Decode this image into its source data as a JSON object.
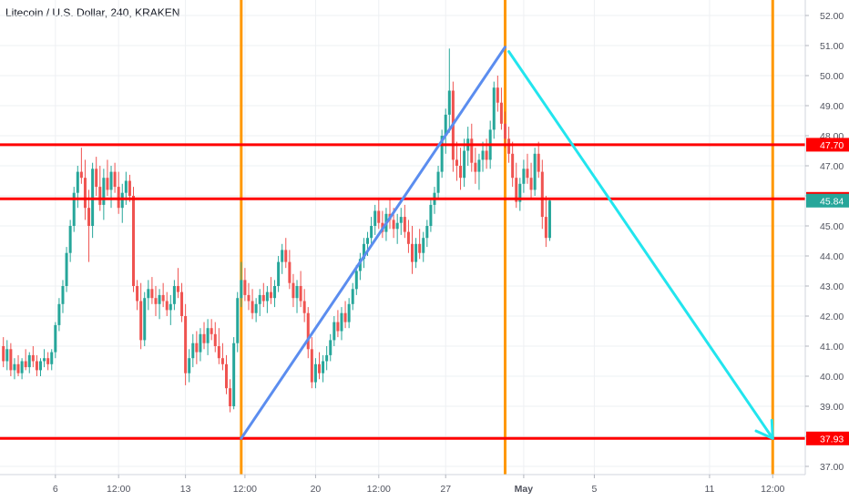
{
  "header": {
    "title": "Litecoin / U.S. Dollar, 240, KRAKEN"
  },
  "colors": {
    "up": "#26a69a",
    "down": "#ef5350",
    "support_resistance": "#ff0000",
    "vertical_markers": "#ff9800",
    "up_trend_line": "#5b8def",
    "down_trend_line": "#22e5ee",
    "current_price_badge": "#26a69a",
    "grid": "#eef0f3"
  },
  "chart_data": {
    "type": "candlestick",
    "symbol": "Litecoin / U.S. Dollar",
    "interval": "240",
    "exchange": "KRAKEN",
    "ylim": [
      36.6,
      52.3
    ],
    "y_ticks": [
      "37.00",
      "38.00",
      "39.00",
      "40.00",
      "41.00",
      "42.00",
      "43.00",
      "44.00",
      "45.00",
      "46.00",
      "47.00",
      "48.00",
      "49.00",
      "50.00",
      "51.00",
      "52.00"
    ],
    "x_ticks": [
      {
        "label": "6",
        "bar": 14
      },
      {
        "label": "12:00",
        "bar": 31
      },
      {
        "label": "13",
        "bar": 49
      },
      {
        "label": "12:00",
        "bar": 65
      },
      {
        "label": "20",
        "bar": 84
      },
      {
        "label": "12:00",
        "bar": 101
      },
      {
        "label": "27",
        "bar": 119
      },
      {
        "label": "May",
        "bar": 140
      },
      {
        "label": "5",
        "bar": 159
      },
      {
        "label": "11",
        "bar": 190
      },
      {
        "label": "12:00",
        "bar": 207
      }
    ],
    "horizontal_levels": [
      {
        "value": 47.7,
        "label": "47.70"
      },
      {
        "value": 45.9,
        "label": "45.90"
      },
      {
        "value": 37.93,
        "label": "37.93"
      }
    ],
    "current_price": {
      "value": 45.84,
      "label": "45.84"
    },
    "vertical_markers_bar": [
      64,
      135,
      207
    ],
    "trend_lines": [
      {
        "name": "up",
        "from": {
          "bar": 64,
          "price": 37.93
        },
        "to": {
          "bar": 135,
          "price": 50.95
        }
      },
      {
        "name": "down",
        "from": {
          "bar": 136,
          "price": 50.8
        },
        "to": {
          "bar": 207,
          "price": 37.93
        },
        "arrow": true
      }
    ],
    "candles": [
      [
        41.0,
        41.3,
        40.3,
        40.5
      ],
      [
        40.5,
        41.2,
        40.2,
        40.9
      ],
      [
        40.9,
        41.1,
        40.0,
        40.2
      ],
      [
        40.2,
        40.6,
        39.9,
        40.4
      ],
      [
        40.4,
        40.7,
        40.0,
        40.1
      ],
      [
        40.1,
        40.6,
        39.9,
        40.5
      ],
      [
        40.5,
        40.9,
        40.2,
        40.3
      ],
      [
        40.3,
        40.8,
        40.1,
        40.7
      ],
      [
        40.7,
        41.0,
        40.3,
        40.5
      ],
      [
        40.5,
        40.7,
        40.0,
        40.2
      ],
      [
        40.2,
        40.6,
        40.0,
        40.5
      ],
      [
        40.5,
        40.9,
        40.3,
        40.6
      ],
      [
        40.6,
        40.8,
        40.2,
        40.4
      ],
      [
        40.4,
        40.9,
        40.2,
        40.8
      ],
      [
        40.8,
        41.8,
        40.6,
        41.7
      ],
      [
        41.7,
        42.6,
        41.5,
        42.4
      ],
      [
        42.4,
        43.2,
        42.1,
        43.0
      ],
      [
        43.0,
        44.3,
        42.8,
        44.1
      ],
      [
        44.1,
        45.2,
        43.8,
        45.0
      ],
      [
        45.0,
        46.3,
        44.8,
        46.1
      ],
      [
        46.1,
        47.0,
        45.6,
        46.8
      ],
      [
        46.8,
        47.6,
        46.4,
        46.6
      ],
      [
        46.6,
        47.2,
        45.2,
        45.6
      ],
      [
        45.6,
        46.2,
        43.8,
        45.0
      ],
      [
        45.0,
        47.1,
        44.6,
        46.9
      ],
      [
        46.9,
        47.3,
        46.0,
        46.3
      ],
      [
        46.3,
        47.0,
        45.5,
        45.7
      ],
      [
        45.7,
        46.9,
        45.2,
        46.6
      ],
      [
        46.6,
        47.2,
        46.0,
        46.2
      ],
      [
        46.2,
        47.0,
        45.6,
        46.8
      ],
      [
        46.8,
        47.1,
        46.1,
        46.3
      ],
      [
        46.3,
        46.8,
        45.4,
        45.6
      ],
      [
        45.6,
        46.4,
        45.1,
        46.1
      ],
      [
        46.1,
        46.8,
        45.7,
        46.5
      ],
      [
        46.5,
        46.7,
        45.8,
        46.0
      ],
      [
        46.0,
        46.3,
        42.8,
        43.0
      ],
      [
        43.0,
        43.2,
        42.2,
        42.5
      ],
      [
        42.5,
        43.1,
        40.9,
        41.2
      ],
      [
        41.2,
        42.8,
        41.0,
        42.6
      ],
      [
        42.6,
        43.2,
        42.2,
        42.9
      ],
      [
        42.9,
        43.3,
        42.4,
        42.6
      ],
      [
        42.6,
        43.0,
        42.0,
        42.4
      ],
      [
        42.4,
        42.9,
        41.9,
        42.7
      ],
      [
        42.7,
        43.1,
        42.3,
        42.5
      ],
      [
        42.5,
        42.8,
        42.0,
        42.2
      ],
      [
        42.2,
        42.7,
        41.7,
        42.4
      ],
      [
        42.4,
        43.2,
        42.2,
        43.0
      ],
      [
        43.0,
        43.6,
        42.6,
        42.8
      ],
      [
        42.8,
        43.1,
        41.8,
        42.0
      ],
      [
        42.0,
        42.4,
        39.7,
        40.1
      ],
      [
        40.1,
        40.9,
        39.8,
        40.6
      ],
      [
        40.6,
        41.4,
        40.3,
        41.1
      ],
      [
        41.1,
        41.5,
        40.4,
        40.8
      ],
      [
        40.8,
        41.6,
        40.5,
        41.4
      ],
      [
        41.4,
        41.8,
        40.9,
        41.1
      ],
      [
        41.1,
        41.9,
        40.7,
        41.6
      ],
      [
        41.6,
        41.9,
        41.2,
        41.4
      ],
      [
        41.4,
        41.8,
        40.8,
        41.0
      ],
      [
        41.0,
        41.6,
        40.4,
        40.6
      ],
      [
        40.6,
        41.1,
        40.2,
        40.4
      ],
      [
        40.4,
        40.7,
        39.4,
        39.6
      ],
      [
        39.6,
        39.9,
        38.8,
        39.0
      ],
      [
        39.0,
        41.3,
        38.9,
        41.1
      ],
      [
        41.1,
        42.8,
        40.8,
        42.6
      ],
      [
        42.6,
        43.8,
        42.3,
        43.2
      ],
      [
        43.2,
        43.6,
        42.5,
        42.7
      ],
      [
        42.7,
        43.1,
        42.2,
        42.5
      ],
      [
        42.5,
        42.9,
        41.9,
        42.1
      ],
      [
        42.1,
        42.6,
        41.8,
        42.4
      ],
      [
        42.4,
        42.9,
        42.0,
        42.7
      ],
      [
        42.7,
        43.1,
        42.3,
        42.5
      ],
      [
        42.5,
        43.0,
        42.1,
        42.8
      ],
      [
        42.8,
        43.3,
        42.4,
        42.6
      ],
      [
        42.6,
        43.2,
        42.3,
        43.0
      ],
      [
        43.0,
        44.0,
        42.8,
        43.8
      ],
      [
        43.8,
        44.4,
        43.4,
        44.2
      ],
      [
        44.2,
        44.6,
        43.6,
        43.8
      ],
      [
        43.8,
        44.2,
        42.9,
        43.1
      ],
      [
        43.1,
        43.4,
        42.3,
        42.6
      ],
      [
        42.6,
        43.2,
        42.1,
        43.0
      ],
      [
        43.0,
        43.5,
        42.3,
        42.5
      ],
      [
        42.5,
        42.9,
        41.8,
        42.1
      ],
      [
        42.1,
        42.3,
        40.6,
        40.9
      ],
      [
        40.9,
        41.3,
        39.6,
        39.8
      ],
      [
        39.8,
        40.6,
        39.6,
        40.4
      ],
      [
        40.4,
        40.8,
        39.9,
        40.1
      ],
      [
        40.1,
        40.7,
        39.8,
        40.5
      ],
      [
        40.5,
        41.0,
        40.2,
        40.7
      ],
      [
        40.7,
        41.4,
        40.5,
        41.2
      ],
      [
        41.2,
        42.0,
        41.0,
        41.8
      ],
      [
        41.8,
        42.2,
        41.3,
        41.5
      ],
      [
        41.5,
        42.3,
        41.2,
        42.1
      ],
      [
        42.1,
        42.5,
        41.6,
        41.8
      ],
      [
        41.8,
        42.6,
        41.6,
        42.4
      ],
      [
        42.4,
        43.1,
        42.2,
        42.9
      ],
      [
        42.9,
        43.7,
        42.7,
        43.5
      ],
      [
        43.5,
        44.1,
        43.2,
        43.9
      ],
      [
        43.9,
        44.6,
        43.6,
        44.4
      ],
      [
        44.4,
        44.8,
        44.0,
        44.6
      ],
      [
        44.6,
        45.3,
        44.3,
        45.0
      ],
      [
        45.0,
        45.7,
        44.7,
        45.5
      ],
      [
        45.5,
        45.9,
        44.9,
        45.1
      ],
      [
        45.1,
        45.5,
        44.6,
        44.8
      ],
      [
        44.8,
        45.6,
        44.5,
        45.4
      ],
      [
        45.4,
        45.9,
        44.9,
        45.2
      ],
      [
        45.2,
        45.6,
        44.6,
        44.9
      ],
      [
        44.9,
        45.4,
        44.4,
        45.1
      ],
      [
        45.1,
        45.6,
        44.7,
        45.3
      ],
      [
        45.3,
        45.7,
        44.6,
        44.8
      ],
      [
        44.8,
        45.2,
        44.1,
        44.4
      ],
      [
        44.4,
        45.0,
        43.4,
        43.8
      ],
      [
        43.8,
        44.6,
        43.6,
        44.4
      ],
      [
        44.4,
        44.9,
        43.9,
        44.1
      ],
      [
        44.1,
        44.8,
        43.8,
        44.6
      ],
      [
        44.6,
        45.2,
        44.3,
        45.0
      ],
      [
        45.0,
        45.9,
        44.8,
        45.7
      ],
      [
        45.7,
        46.3,
        45.4,
        46.1
      ],
      [
        46.1,
        47.0,
        45.9,
        46.8
      ],
      [
        46.8,
        48.2,
        46.6,
        48.0
      ],
      [
        48.0,
        48.9,
        47.4,
        48.7
      ],
      [
        48.7,
        50.9,
        48.1,
        49.5
      ],
      [
        49.5,
        49.8,
        46.8,
        47.2
      ],
      [
        47.2,
        47.8,
        46.5,
        47.0
      ],
      [
        47.0,
        47.6,
        46.2,
        46.6
      ],
      [
        46.6,
        47.9,
        46.3,
        47.5
      ],
      [
        47.5,
        48.3,
        47.0,
        47.9
      ],
      [
        47.9,
        48.4,
        46.8,
        47.1
      ],
      [
        47.1,
        47.6,
        46.4,
        46.8
      ],
      [
        46.8,
        47.4,
        46.2,
        47.2
      ],
      [
        47.2,
        47.8,
        46.8,
        47.5
      ],
      [
        47.5,
        47.9,
        46.9,
        47.2
      ],
      [
        47.2,
        48.5,
        46.9,
        48.2
      ],
      [
        48.2,
        49.8,
        47.9,
        49.6
      ],
      [
        49.6,
        50.0,
        48.8,
        49.1
      ],
      [
        49.1,
        49.6,
        48.2,
        48.4
      ],
      [
        48.4,
        48.8,
        47.6,
        47.9
      ],
      [
        47.9,
        48.3,
        47.1,
        47.4
      ],
      [
        47.4,
        47.8,
        46.3,
        46.6
      ],
      [
        46.6,
        47.1,
        45.6,
        45.8
      ],
      [
        45.8,
        46.6,
        45.5,
        46.4
      ],
      [
        46.4,
        47.2,
        46.1,
        46.9
      ],
      [
        46.9,
        47.4,
        46.4,
        46.6
      ],
      [
        46.6,
        47.1,
        45.9,
        46.2
      ],
      [
        46.2,
        47.6,
        46.0,
        47.4
      ],
      [
        47.4,
        47.8,
        46.6,
        46.8
      ],
      [
        46.8,
        47.2,
        44.9,
        45.3
      ],
      [
        45.3,
        46.0,
        44.3,
        44.6
      ],
      [
        44.6,
        45.9,
        44.5,
        45.84
      ]
    ]
  }
}
